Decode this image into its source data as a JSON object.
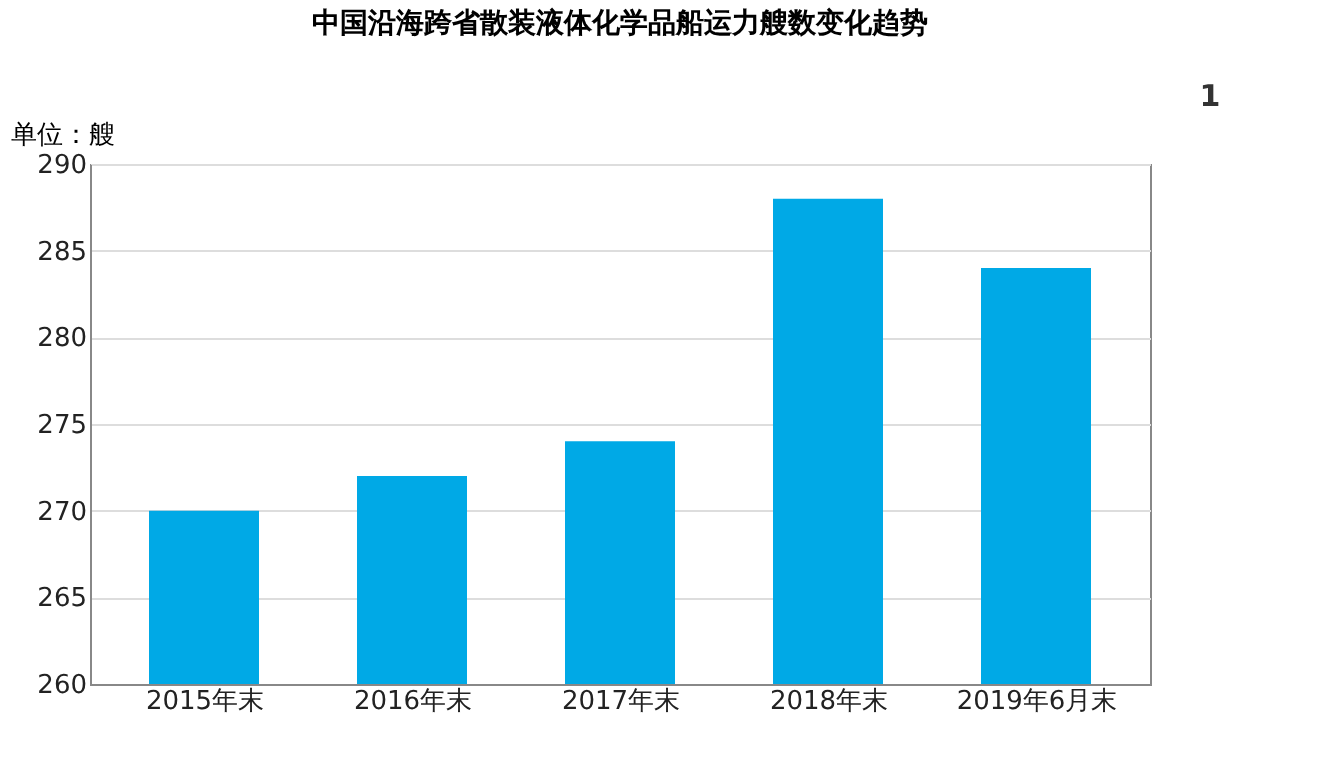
{
  "chart_data": {
    "type": "bar",
    "title": "中国沿海跨省散装液体化学品船运力艘数变化趋势",
    "ylabel": "单位：艘",
    "annotations": [
      "1"
    ],
    "categories": [
      "2015年末",
      "2016年末",
      "2017年末",
      "2018年末",
      "2019年6月末"
    ],
    "series": [
      {
        "color": "#00a9e6",
        "values": [
          270,
          272,
          274,
          288,
          284
        ]
      }
    ],
    "ylim": [
      260,
      290
    ],
    "yticks": [
      260,
      265,
      270,
      275,
      280,
      285,
      290
    ],
    "grid": "y",
    "legend": false
  }
}
